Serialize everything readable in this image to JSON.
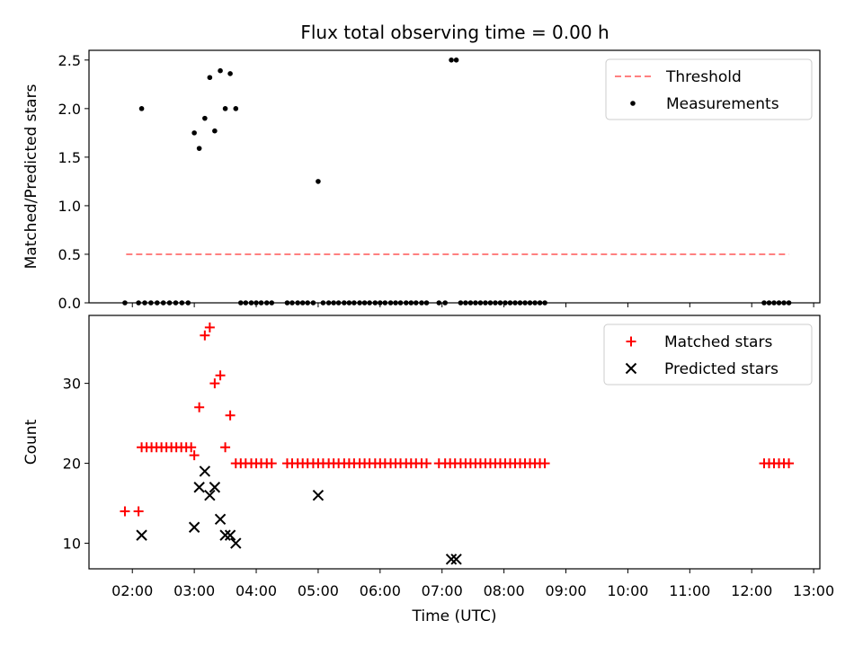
{
  "chart_data": [
    {
      "type": "scatter",
      "title": "Flux total observing time = 0.00 h",
      "xlabel": "",
      "ylabel": "Matched/Predicted stars",
      "xlim": [
        1.3,
        13.1
      ],
      "ylim": [
        0,
        2.6
      ],
      "xticks": [
        2,
        3,
        4,
        5,
        6,
        7,
        8,
        9,
        10,
        11,
        12,
        13
      ],
      "yticks": [
        {
          "value": 0.0,
          "label": "0.0"
        },
        {
          "value": 0.5,
          "label": "0.5"
        },
        {
          "value": 1.0,
          "label": "1.0"
        },
        {
          "value": 1.5,
          "label": "1.5"
        },
        {
          "value": 2.0,
          "label": "2.0"
        },
        {
          "value": 2.5,
          "label": "2.5"
        }
      ],
      "legend": {
        "position": "top-right",
        "entries": [
          "Threshold",
          "Measurements"
        ]
      },
      "series": [
        {
          "name": "Threshold",
          "kind": "dashed-line",
          "color": "#ff8080",
          "x": [
            1.9,
            12.6
          ],
          "y": [
            0.5,
            0.5
          ]
        },
        {
          "name": "Measurements",
          "kind": "dot",
          "color": "#000000",
          "points": [
            [
              1.88,
              0
            ],
            [
              2.1,
              0
            ],
            [
              2.15,
              2.0
            ],
            [
              2.2,
              0
            ],
            [
              2.3,
              0
            ],
            [
              2.4,
              0
            ],
            [
              2.5,
              0
            ],
            [
              2.6,
              0
            ],
            [
              2.7,
              0
            ],
            [
              2.8,
              0
            ],
            [
              2.9,
              0
            ],
            [
              3.0,
              1.75
            ],
            [
              3.08,
              1.59
            ],
            [
              3.17,
              1.9
            ],
            [
              3.25,
              2.32
            ],
            [
              3.33,
              1.77
            ],
            [
              3.42,
              2.39
            ],
            [
              3.5,
              2.0
            ],
            [
              3.58,
              2.36
            ],
            [
              3.67,
              2.0
            ],
            [
              3.75,
              0
            ],
            [
              3.83,
              0
            ],
            [
              3.92,
              0
            ],
            [
              4.0,
              0
            ],
            [
              4.08,
              0
            ],
            [
              4.17,
              0
            ],
            [
              4.25,
              0
            ],
            [
              4.5,
              0
            ],
            [
              4.58,
              0
            ],
            [
              4.67,
              0
            ],
            [
              4.75,
              0
            ],
            [
              4.83,
              0
            ],
            [
              4.92,
              0
            ],
            [
              5.0,
              1.25
            ],
            [
              5.08,
              0
            ],
            [
              5.17,
              0
            ],
            [
              5.25,
              0
            ],
            [
              5.33,
              0
            ],
            [
              5.42,
              0
            ],
            [
              5.5,
              0
            ],
            [
              5.58,
              0
            ],
            [
              5.67,
              0
            ],
            [
              5.75,
              0
            ],
            [
              5.83,
              0
            ],
            [
              5.92,
              0
            ],
            [
              6.0,
              0
            ],
            [
              6.08,
              0
            ],
            [
              6.17,
              0
            ],
            [
              6.25,
              0
            ],
            [
              6.33,
              0
            ],
            [
              6.42,
              0
            ],
            [
              6.5,
              0
            ],
            [
              6.58,
              0
            ],
            [
              6.67,
              0
            ],
            [
              6.75,
              0
            ],
            [
              6.95,
              0
            ],
            [
              7.05,
              0
            ],
            [
              7.15,
              2.5
            ],
            [
              7.23,
              2.5
            ],
            [
              7.3,
              0
            ],
            [
              7.38,
              0
            ],
            [
              7.46,
              0
            ],
            [
              7.54,
              0
            ],
            [
              7.62,
              0
            ],
            [
              7.7,
              0
            ],
            [
              7.78,
              0
            ],
            [
              7.86,
              0
            ],
            [
              7.94,
              0
            ],
            [
              8.02,
              0
            ],
            [
              8.1,
              0
            ],
            [
              8.18,
              0
            ],
            [
              8.26,
              0
            ],
            [
              8.34,
              0
            ],
            [
              8.42,
              0
            ],
            [
              8.5,
              0
            ],
            [
              8.58,
              0
            ],
            [
              8.66,
              0
            ],
            [
              12.2,
              0
            ],
            [
              12.28,
              0
            ],
            [
              12.36,
              0
            ],
            [
              12.44,
              0
            ],
            [
              12.52,
              0
            ],
            [
              12.6,
              0
            ]
          ]
        }
      ]
    },
    {
      "type": "scatter",
      "title": "",
      "xlabel": "Time (UTC)",
      "ylabel": "Count",
      "xlim": [
        1.3,
        13.1
      ],
      "ylim": [
        6.8,
        38.5
      ],
      "xticks": [
        {
          "value": 2,
          "label": "02:00"
        },
        {
          "value": 3,
          "label": "03:00"
        },
        {
          "value": 4,
          "label": "04:00"
        },
        {
          "value": 5,
          "label": "05:00"
        },
        {
          "value": 6,
          "label": "06:00"
        },
        {
          "value": 7,
          "label": "07:00"
        },
        {
          "value": 8,
          "label": "08:00"
        },
        {
          "value": 9,
          "label": "09:00"
        },
        {
          "value": 10,
          "label": "10:00"
        },
        {
          "value": 11,
          "label": "11:00"
        },
        {
          "value": 12,
          "label": "12:00"
        },
        {
          "value": 13,
          "label": "13:00"
        }
      ],
      "yticks": [
        {
          "value": 10,
          "label": "10"
        },
        {
          "value": 20,
          "label": "20"
        },
        {
          "value": 30,
          "label": "30"
        }
      ],
      "legend": {
        "position": "top-right",
        "entries": [
          "Matched stars",
          "Predicted stars"
        ]
      },
      "series": [
        {
          "name": "Matched stars",
          "kind": "plus",
          "color": "#ff0000",
          "points": [
            [
              1.88,
              14
            ],
            [
              2.1,
              14
            ],
            [
              2.15,
              22
            ],
            [
              2.23,
              22
            ],
            [
              2.31,
              22
            ],
            [
              2.39,
              22
            ],
            [
              2.47,
              22
            ],
            [
              2.55,
              22
            ],
            [
              2.63,
              22
            ],
            [
              2.71,
              22
            ],
            [
              2.79,
              22
            ],
            [
              2.87,
              22
            ],
            [
              2.95,
              22
            ],
            [
              3.0,
              21
            ],
            [
              3.08,
              27
            ],
            [
              3.17,
              36
            ],
            [
              3.25,
              37
            ],
            [
              3.33,
              30
            ],
            [
              3.42,
              31
            ],
            [
              3.5,
              22
            ],
            [
              3.58,
              26
            ],
            [
              3.67,
              20
            ],
            [
              3.75,
              20
            ],
            [
              3.83,
              20
            ],
            [
              3.92,
              20
            ],
            [
              4.0,
              20
            ],
            [
              4.08,
              20
            ],
            [
              4.17,
              20
            ],
            [
              4.25,
              20
            ],
            [
              4.5,
              20
            ],
            [
              4.58,
              20
            ],
            [
              4.67,
              20
            ],
            [
              4.75,
              20
            ],
            [
              4.83,
              20
            ],
            [
              4.92,
              20
            ],
            [
              5.0,
              20
            ],
            [
              5.08,
              20
            ],
            [
              5.17,
              20
            ],
            [
              5.25,
              20
            ],
            [
              5.33,
              20
            ],
            [
              5.42,
              20
            ],
            [
              5.5,
              20
            ],
            [
              5.58,
              20
            ],
            [
              5.67,
              20
            ],
            [
              5.75,
              20
            ],
            [
              5.83,
              20
            ],
            [
              5.92,
              20
            ],
            [
              6.0,
              20
            ],
            [
              6.08,
              20
            ],
            [
              6.17,
              20
            ],
            [
              6.25,
              20
            ],
            [
              6.33,
              20
            ],
            [
              6.42,
              20
            ],
            [
              6.5,
              20
            ],
            [
              6.58,
              20
            ],
            [
              6.67,
              20
            ],
            [
              6.75,
              20
            ],
            [
              6.95,
              20
            ],
            [
              7.05,
              20
            ],
            [
              7.13,
              20
            ],
            [
              7.21,
              20
            ],
            [
              7.3,
              20
            ],
            [
              7.38,
              20
            ],
            [
              7.46,
              20
            ],
            [
              7.54,
              20
            ],
            [
              7.62,
              20
            ],
            [
              7.7,
              20
            ],
            [
              7.78,
              20
            ],
            [
              7.86,
              20
            ],
            [
              7.94,
              20
            ],
            [
              8.02,
              20
            ],
            [
              8.1,
              20
            ],
            [
              8.18,
              20
            ],
            [
              8.26,
              20
            ],
            [
              8.34,
              20
            ],
            [
              8.42,
              20
            ],
            [
              8.5,
              20
            ],
            [
              8.58,
              20
            ],
            [
              8.66,
              20
            ],
            [
              12.2,
              20
            ],
            [
              12.28,
              20
            ],
            [
              12.36,
              20
            ],
            [
              12.44,
              20
            ],
            [
              12.52,
              20
            ],
            [
              12.6,
              20
            ]
          ]
        },
        {
          "name": "Predicted stars",
          "kind": "x",
          "color": "#000000",
          "points": [
            [
              2.15,
              11
            ],
            [
              3.0,
              12
            ],
            [
              3.08,
              17
            ],
            [
              3.17,
              19
            ],
            [
              3.25,
              16
            ],
            [
              3.33,
              17
            ],
            [
              3.42,
              13
            ],
            [
              3.5,
              11
            ],
            [
              3.58,
              11
            ],
            [
              3.67,
              10
            ],
            [
              5.0,
              16
            ],
            [
              7.15,
              8
            ],
            [
              7.23,
              8
            ]
          ]
        }
      ]
    }
  ]
}
